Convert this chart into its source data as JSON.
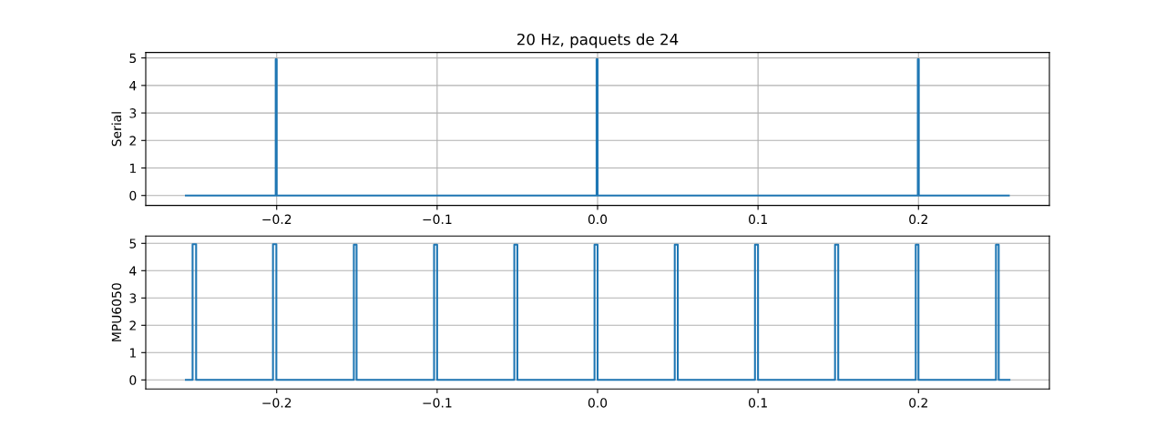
{
  "chart_data": [
    {
      "type": "step",
      "title": "20 Hz, paquets de 24",
      "ylabel": "Serial",
      "series": [
        {
          "color": "#1f77b4",
          "x": [
            -0.2566,
            -0.2006,
            -0.2,
            -0.0006,
            0.0,
            0.1996,
            0.2002,
            0.2563
          ],
          "values": [
            0,
            4.95,
            0,
            4.95,
            0,
            4.95,
            0,
            0
          ]
        }
      ],
      "xlim": [
        -0.2816,
        0.2816
      ],
      "ylim": [
        -0.36,
        5.2
      ],
      "xticks": [
        {
          "value": -0.2,
          "label": "−0.2"
        },
        {
          "value": -0.1,
          "label": "−0.1"
        },
        {
          "value": 0.0,
          "label": "0.0"
        },
        {
          "value": 0.1,
          "label": "0.1"
        },
        {
          "value": 0.2,
          "label": "0.2"
        }
      ],
      "yticks": [
        0,
        1,
        2,
        3,
        4,
        5
      ],
      "grid": true
    },
    {
      "type": "step",
      "ylabel": "MPU6050",
      "series": [
        {
          "color": "#1f77b4",
          "x": [
            -0.2566,
            -0.2524,
            -0.2502,
            -0.2023,
            -0.2002,
            -0.1519,
            -0.1502,
            -0.1019,
            -0.1,
            -0.0519,
            -0.05,
            -0.0019,
            0.0,
            0.0481,
            0.05,
            0.0981,
            0.1,
            0.148,
            0.15,
            0.1983,
            0.2,
            0.2483,
            0.25,
            0.2567
          ],
          "values": [
            0,
            4.97,
            0,
            4.97,
            0,
            4.95,
            0,
            4.95,
            0,
            4.95,
            0,
            4.95,
            0,
            4.95,
            0,
            4.95,
            0,
            4.95,
            0,
            4.95,
            0,
            4.95,
            0,
            0
          ]
        }
      ],
      "xlim": [
        -0.2816,
        0.2816
      ],
      "ylim": [
        -0.33,
        5.27
      ],
      "xticks": [
        {
          "value": -0.2,
          "label": "−0.2"
        },
        {
          "value": -0.1,
          "label": "−0.1"
        },
        {
          "value": 0.0,
          "label": "0.0"
        },
        {
          "value": 0.1,
          "label": "0.1"
        },
        {
          "value": 0.2,
          "label": "0.2"
        }
      ],
      "yticks": [
        0,
        1,
        2,
        3,
        4,
        5
      ],
      "grid": "y"
    }
  ]
}
